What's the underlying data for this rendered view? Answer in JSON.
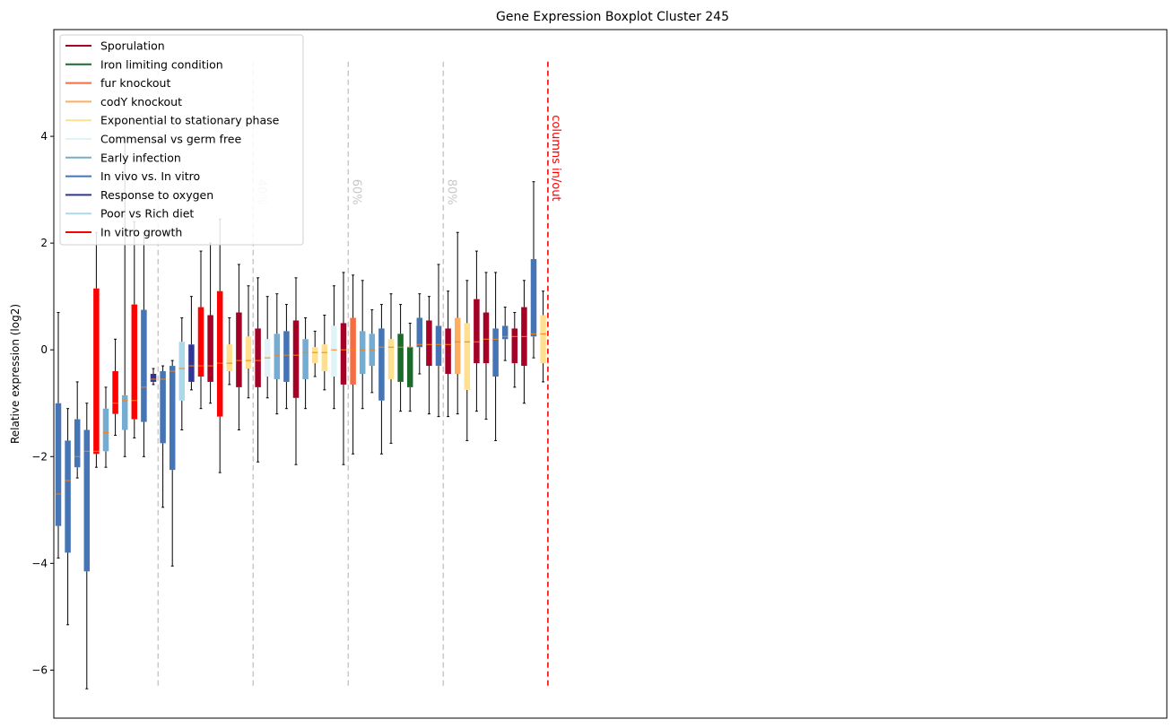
{
  "chart_data": {
    "type": "boxplot",
    "title": "Gene Expression Boxplot Cluster 245",
    "ylabel": "Relative expression (log2)",
    "xlabel": "",
    "ylim": [
      -6.9,
      6.0
    ],
    "yticks": [
      -6,
      -4,
      -2,
      0,
      2,
      4
    ],
    "ytick_labels": [
      "−6",
      "−4",
      "−2",
      "0",
      "2",
      "4"
    ],
    "grid": false,
    "legend_position": "top-left",
    "legend": [
      {
        "name": "Sporulation",
        "color": "#a50026"
      },
      {
        "name": "Iron limiting condition",
        "color": "#1a6b2a"
      },
      {
        "name": "fur knockout",
        "color": "#f46d43"
      },
      {
        "name": "codY knockout",
        "color": "#fdae61"
      },
      {
        "name": "Exponential to stationary phase",
        "color": "#fee090"
      },
      {
        "name": "Commensal vs germ free",
        "color": "#e0f3f8"
      },
      {
        "name": "Early infection",
        "color": "#74add1"
      },
      {
        "name": "In vivo vs. In vitro",
        "color": "#4575b4"
      },
      {
        "name": "Response to oxygen",
        "color": "#313695"
      },
      {
        "name": "Poor vs Rich diet",
        "color": "#abd9e9"
      },
      {
        "name": "In vitro growth",
        "color": "#ff0000"
      }
    ],
    "median_color": "#ff7f0e",
    "vlines": [
      {
        "x": 10.5,
        "label": "",
        "color": "#c8c8c8"
      },
      {
        "x": 20.5,
        "label": "40%",
        "color": "#c8c8c8"
      },
      {
        "x": 30.5,
        "label": "60%",
        "color": "#c8c8c8"
      },
      {
        "x": 40.5,
        "label": "80%",
        "color": "#c8c8c8"
      },
      {
        "x": 51.5,
        "label": "columns in/out",
        "color": "#ff0000"
      }
    ],
    "boxes": [
      {
        "c": 7,
        "q1": -3.3,
        "med": -2.7,
        "q3": -1.0,
        "lo": -3.9,
        "hi": 0.7
      },
      {
        "c": 7,
        "q1": -3.8,
        "med": -2.45,
        "q3": -1.7,
        "lo": -5.15,
        "hi": -1.1
      },
      {
        "c": 7,
        "q1": -2.2,
        "med": -2.0,
        "q3": -1.3,
        "lo": -2.4,
        "hi": -0.6
      },
      {
        "c": 7,
        "q1": -4.15,
        "med": -1.9,
        "q3": -1.5,
        "lo": -6.35,
        "hi": -1.0
      },
      {
        "c": 10,
        "q1": -1.95,
        "med": -1.9,
        "q3": 1.15,
        "lo": -2.2,
        "hi": 2.2
      },
      {
        "c": 6,
        "q1": -1.9,
        "med": -1.55,
        "q3": -1.1,
        "lo": -2.2,
        "hi": -0.7
      },
      {
        "c": 10,
        "q1": -1.2,
        "med": -1.0,
        "q3": -0.4,
        "lo": -1.6,
        "hi": 0.2
      },
      {
        "c": 6,
        "q1": -1.5,
        "med": -0.95,
        "q3": -0.85,
        "lo": -2.0,
        "hi": 4.0
      },
      {
        "c": 10,
        "q1": -1.3,
        "med": -0.95,
        "q3": 0.85,
        "lo": -1.65,
        "hi": 2.4
      },
      {
        "c": 7,
        "q1": -1.35,
        "med": -0.7,
        "q3": 0.75,
        "lo": -2.0,
        "hi": 2.2
      },
      {
        "c": 8,
        "q1": -0.6,
        "med": -0.55,
        "q3": -0.45,
        "lo": -0.65,
        "hi": -0.35
      },
      {
        "c": 7,
        "q1": -1.75,
        "med": -0.55,
        "q3": -0.4,
        "lo": -2.95,
        "hi": -0.3
      },
      {
        "c": 7,
        "q1": -2.25,
        "med": -0.4,
        "q3": -0.3,
        "lo": -4.05,
        "hi": -0.2
      },
      {
        "c": 9,
        "q1": -0.95,
        "med": -0.35,
        "q3": 0.15,
        "lo": -1.5,
        "hi": 0.6
      },
      {
        "c": 8,
        "q1": -0.6,
        "med": -0.3,
        "q3": 0.1,
        "lo": -0.75,
        "hi": 1.0
      },
      {
        "c": 10,
        "q1": -0.5,
        "med": -0.3,
        "q3": 0.8,
        "lo": -1.1,
        "hi": 1.85
      },
      {
        "c": 0,
        "q1": -0.6,
        "med": -0.3,
        "q3": 0.65,
        "lo": -1.0,
        "hi": 2.0
      },
      {
        "c": 10,
        "q1": -1.25,
        "med": -0.25,
        "q3": 1.1,
        "lo": -2.3,
        "hi": 2.45
      },
      {
        "c": 4,
        "q1": -0.4,
        "med": -0.25,
        "q3": 0.1,
        "lo": -0.65,
        "hi": 0.6
      },
      {
        "c": 0,
        "q1": -0.7,
        "med": -0.2,
        "q3": 0.7,
        "lo": -1.5,
        "hi": 1.6
      },
      {
        "c": 4,
        "q1": -0.35,
        "med": -0.2,
        "q3": 0.25,
        "lo": -0.9,
        "hi": 1.2
      },
      {
        "c": 0,
        "q1": -0.7,
        "med": -0.2,
        "q3": 0.4,
        "lo": -2.1,
        "hi": 1.35
      },
      {
        "c": 5,
        "q1": -0.5,
        "med": -0.15,
        "q3": 0.2,
        "lo": -0.9,
        "hi": 1.0
      },
      {
        "c": 6,
        "q1": -0.55,
        "med": -0.1,
        "q3": 0.3,
        "lo": -1.2,
        "hi": 1.05
      },
      {
        "c": 7,
        "q1": -0.6,
        "med": -0.1,
        "q3": 0.35,
        "lo": -1.1,
        "hi": 0.85
      },
      {
        "c": 0,
        "q1": -0.9,
        "med": -0.1,
        "q3": 0.55,
        "lo": -2.15,
        "hi": 1.35
      },
      {
        "c": 6,
        "q1": -0.55,
        "med": -0.05,
        "q3": 0.2,
        "lo": -1.1,
        "hi": 0.6
      },
      {
        "c": 4,
        "q1": -0.25,
        "med": -0.05,
        "q3": 0.05,
        "lo": -0.5,
        "hi": 0.35
      },
      {
        "c": 4,
        "q1": -0.4,
        "med": -0.05,
        "q3": 0.1,
        "lo": -0.75,
        "hi": 0.65
      },
      {
        "c": 5,
        "q1": -0.5,
        "med": 0.0,
        "q3": 0.45,
        "lo": -1.1,
        "hi": 1.2
      },
      {
        "c": 0,
        "q1": -0.65,
        "med": 0.0,
        "q3": 0.5,
        "lo": -2.15,
        "hi": 1.45
      },
      {
        "c": 2,
        "q1": -0.65,
        "med": 0.0,
        "q3": 0.6,
        "lo": -1.95,
        "hi": 1.4
      },
      {
        "c": 6,
        "q1": -0.45,
        "med": 0.0,
        "q3": 0.35,
        "lo": -1.1,
        "hi": 1.3
      },
      {
        "c": 6,
        "q1": -0.3,
        "med": 0.0,
        "q3": 0.3,
        "lo": -0.8,
        "hi": 0.75
      },
      {
        "c": 7,
        "q1": -0.95,
        "med": 0.05,
        "q3": 0.4,
        "lo": -1.95,
        "hi": 0.85
      },
      {
        "c": 4,
        "q1": -0.55,
        "med": 0.05,
        "q3": 0.2,
        "lo": -1.75,
        "hi": 1.05
      },
      {
        "c": 1,
        "q1": -0.6,
        "med": 0.05,
        "q3": 0.3,
        "lo": -1.15,
        "hi": 0.85
      },
      {
        "c": 1,
        "q1": -0.7,
        "med": 0.05,
        "q3": 0.05,
        "lo": -1.15,
        "hi": 0.5
      },
      {
        "c": 7,
        "q1": 0.05,
        "med": 0.1,
        "q3": 0.6,
        "lo": -0.45,
        "hi": 1.05
      },
      {
        "c": 0,
        "q1": -0.3,
        "med": 0.1,
        "q3": 0.55,
        "lo": -1.2,
        "hi": 1.0
      },
      {
        "c": 7,
        "q1": -0.3,
        "med": 0.1,
        "q3": 0.45,
        "lo": -1.25,
        "hi": 1.6
      },
      {
        "c": 0,
        "q1": -0.45,
        "med": 0.1,
        "q3": 0.4,
        "lo": -1.25,
        "hi": 1.1
      },
      {
        "c": 3,
        "q1": -0.45,
        "med": 0.15,
        "q3": 0.6,
        "lo": -1.2,
        "hi": 2.2
      },
      {
        "c": 4,
        "q1": -0.75,
        "med": 0.15,
        "q3": 0.5,
        "lo": -1.7,
        "hi": 1.3
      },
      {
        "c": 0,
        "q1": -0.25,
        "med": 0.15,
        "q3": 0.95,
        "lo": -1.15,
        "hi": 1.85
      },
      {
        "c": 0,
        "q1": -0.25,
        "med": 0.2,
        "q3": 0.7,
        "lo": -1.3,
        "hi": 1.45
      },
      {
        "c": 7,
        "q1": -0.5,
        "med": 0.2,
        "q3": 0.4,
        "lo": -1.7,
        "hi": 1.45
      },
      {
        "c": 7,
        "q1": 0.2,
        "med": 0.25,
        "q3": 0.45,
        "lo": -0.2,
        "hi": 0.8
      },
      {
        "c": 0,
        "q1": -0.25,
        "med": 0.25,
        "q3": 0.4,
        "lo": -0.7,
        "hi": 0.7
      },
      {
        "c": 0,
        "q1": -0.3,
        "med": 0.25,
        "q3": 0.8,
        "lo": -1.0,
        "hi": 1.3
      },
      {
        "c": 7,
        "q1": 0.25,
        "med": 0.3,
        "q3": 1.7,
        "lo": -0.15,
        "hi": 3.15
      },
      {
        "c": 4,
        "q1": -0.25,
        "med": 0.3,
        "q3": 0.65,
        "lo": -0.6,
        "hi": 1.1
      }
    ]
  }
}
